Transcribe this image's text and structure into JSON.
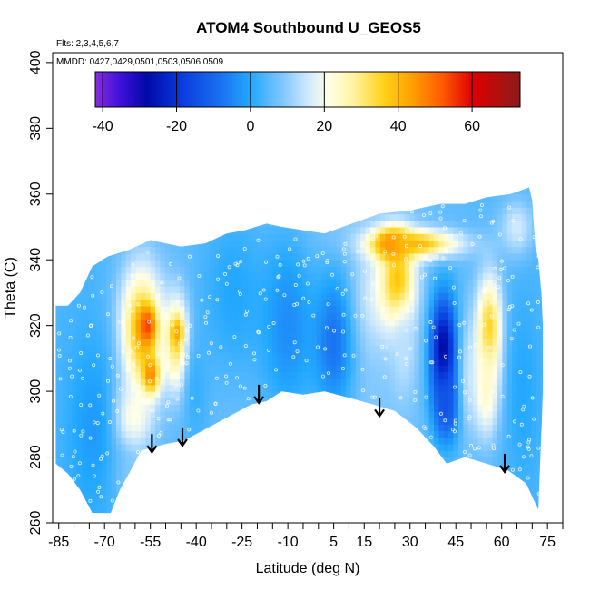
{
  "chart_data": {
    "type": "heatmap",
    "title": "ATOM4 Southbound U_GEOS5",
    "notes": [
      "Flts: 2,3,4,5,6,7",
      "MMDD: 0427,0429,0501,0503,0506,0509"
    ],
    "xlabel": "Latitude (deg N)",
    "ylabel": "Theta (C)",
    "xlim": [
      -87,
      80
    ],
    "ylim": [
      260,
      403
    ],
    "x_ticks": [
      -85,
      -70,
      -55,
      -40,
      -25,
      -10,
      5,
      15,
      30,
      45,
      60,
      75
    ],
    "x_minor_step": 5,
    "y_ticks": [
      260,
      280,
      300,
      320,
      340,
      360,
      380,
      400
    ],
    "colorbar": {
      "range": [
        -42,
        73
      ],
      "ticks": [
        -40,
        -20,
        0,
        20,
        40,
        60
      ],
      "stops": [
        {
          "value": -42,
          "color": "#8a2be2"
        },
        {
          "value": -35,
          "color": "#3a10d8"
        },
        {
          "value": -28,
          "color": "#000aa8"
        },
        {
          "value": -18,
          "color": "#0a3ee0"
        },
        {
          "value": -8,
          "color": "#1a72f0"
        },
        {
          "value": 0,
          "color": "#22a8ff"
        },
        {
          "value": 8,
          "color": "#78c4ff"
        },
        {
          "value": 15,
          "color": "#c8e6ff"
        },
        {
          "value": 21,
          "color": "#ffffe8"
        },
        {
          "value": 28,
          "color": "#fff3a0"
        },
        {
          "value": 36,
          "color": "#ffd21a"
        },
        {
          "value": 44,
          "color": "#ff9e00"
        },
        {
          "value": 52,
          "color": "#ff5a00"
        },
        {
          "value": 60,
          "color": "#e00000"
        },
        {
          "value": 73,
          "color": "#8b1a1a"
        }
      ]
    },
    "grid": false,
    "data_boundary": {
      "top": [
        [
          -86,
          326
        ],
        [
          -82,
          326
        ],
        [
          -78,
          330
        ],
        [
          -74,
          338
        ],
        [
          -69,
          341
        ],
        [
          -62,
          343
        ],
        [
          -55,
          346
        ],
        [
          -45,
          344
        ],
        [
          -37,
          345
        ],
        [
          -30,
          348
        ],
        [
          -24,
          349
        ],
        [
          -17,
          351
        ],
        [
          -12,
          350
        ],
        [
          -5,
          349
        ],
        [
          2,
          348
        ],
        [
          8,
          350
        ],
        [
          14,
          352
        ],
        [
          20,
          354
        ],
        [
          30,
          355
        ],
        [
          40,
          357
        ],
        [
          48,
          357
        ],
        [
          55,
          359
        ],
        [
          63,
          360
        ],
        [
          69,
          362
        ],
        [
          70,
          358
        ],
        [
          71,
          344
        ],
        [
          72,
          340
        ],
        [
          73,
          330
        ],
        [
          73.5,
          320
        ],
        [
          73.5,
          300
        ]
      ],
      "bottom": [
        [
          -86,
          278
        ],
        [
          -82,
          275
        ],
        [
          -78,
          270
        ],
        [
          -74,
          263
        ],
        [
          -68,
          263
        ],
        [
          -65,
          270
        ],
        [
          -62,
          275
        ],
        [
          -58,
          282
        ],
        [
          -50,
          284
        ],
        [
          -44,
          285
        ],
        [
          -36,
          289
        ],
        [
          -28,
          293
        ],
        [
          -22,
          296
        ],
        [
          -17,
          297
        ],
        [
          -12,
          300
        ],
        [
          -5,
          299
        ],
        [
          2,
          300
        ],
        [
          10,
          298
        ],
        [
          18,
          296
        ],
        [
          25,
          294
        ],
        [
          32,
          289
        ],
        [
          38,
          283
        ],
        [
          42,
          278
        ],
        [
          48,
          280
        ],
        [
          55,
          278
        ],
        [
          62,
          276
        ],
        [
          68,
          272
        ],
        [
          72,
          264
        ]
      ]
    },
    "wind_field": [
      {
        "lat": -58,
        "theta": 318,
        "value": 40,
        "sd_lat": 5,
        "sd_theta": 14
      },
      {
        "lat": -56,
        "theta": 320,
        "value": 55,
        "sd_lat": 2,
        "sd_theta": 4
      },
      {
        "lat": -55,
        "theta": 305,
        "value": 50,
        "sd_lat": 2,
        "sd_theta": 4
      },
      {
        "lat": -46,
        "theta": 315,
        "value": 36,
        "sd_lat": 3,
        "sd_theta": 10
      },
      {
        "lat": -46,
        "theta": 318,
        "value": 48,
        "sd_lat": 1.5,
        "sd_theta": 3
      },
      {
        "lat": -62,
        "theta": 292,
        "value": 24,
        "sd_lat": 5,
        "sd_theta": 8
      },
      {
        "lat": -63,
        "theta": 275,
        "value": 10,
        "sd_lat": 4,
        "sd_theta": 6
      },
      {
        "lat": -74,
        "theta": 290,
        "value": -2,
        "sd_lat": 6,
        "sd_theta": 20
      },
      {
        "lat": -28,
        "theta": 330,
        "value": 0,
        "sd_lat": 8,
        "sd_theta": 20
      },
      {
        "lat": -10,
        "theta": 320,
        "value": -4,
        "sd_lat": 7,
        "sd_theta": 22
      },
      {
        "lat": 5,
        "theta": 315,
        "value": -8,
        "sd_lat": 5,
        "sd_theta": 16
      },
      {
        "lat": 18,
        "theta": 330,
        "value": 15,
        "sd_lat": 4,
        "sd_theta": 12
      },
      {
        "lat": 26,
        "theta": 333,
        "value": 40,
        "sd_lat": 4,
        "sd_theta": 10
      },
      {
        "lat": 24,
        "theta": 345,
        "value": 55,
        "sd_lat": 4,
        "sd_theta": 3
      },
      {
        "lat": 32,
        "theta": 345,
        "value": 40,
        "sd_lat": 10,
        "sd_theta": 3
      },
      {
        "lat": 28,
        "theta": 312,
        "value": 14,
        "sd_lat": 3,
        "sd_theta": 10
      },
      {
        "lat": 41,
        "theta": 312,
        "value": -30,
        "sd_lat": 3,
        "sd_theta": 12
      },
      {
        "lat": 42,
        "theta": 296,
        "value": -14,
        "sd_lat": 3,
        "sd_theta": 8
      },
      {
        "lat": 49,
        "theta": 305,
        "value": 12,
        "sd_lat": 2,
        "sd_theta": 14
      },
      {
        "lat": 56,
        "theta": 318,
        "value": 38,
        "sd_lat": 3,
        "sd_theta": 12
      },
      {
        "lat": 55,
        "theta": 300,
        "value": 24,
        "sd_lat": 3,
        "sd_theta": 10
      },
      {
        "lat": 67,
        "theta": 300,
        "value": 0,
        "sd_lat": 4,
        "sd_theta": 20
      },
      {
        "lat": 65,
        "theta": 350,
        "value": 16,
        "sd_lat": 4,
        "sd_theta": 6
      },
      {
        "lat": -40,
        "theta": 300,
        "value": 2,
        "sd_lat": 3,
        "sd_theta": 14
      }
    ],
    "tropopause_arrows": [
      {
        "lat": -54.5,
        "theta": 287
      },
      {
        "lat": -44.5,
        "theta": 289
      },
      {
        "lat": -19.5,
        "theta": 302
      },
      {
        "lat": 20,
        "theta": 298
      },
      {
        "lat": 61,
        "theta": 281
      }
    ]
  }
}
